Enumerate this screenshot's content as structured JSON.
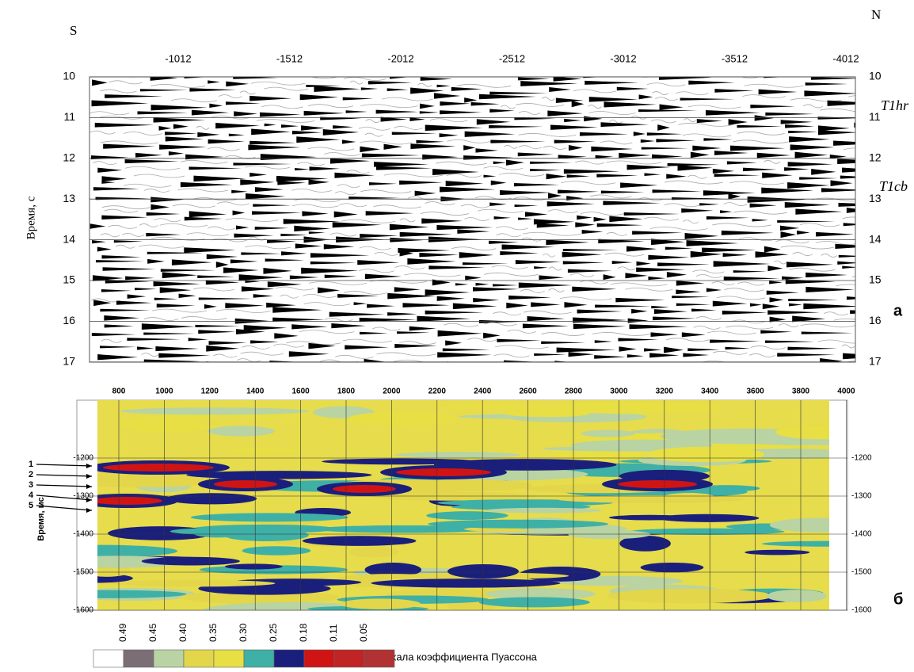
{
  "panels": [
    {
      "label": "а",
      "left_label": "S",
      "right_label": "N",
      "y_axis_label": "Время, с",
      "horizons": [
        "T1hr",
        "T1cb"
      ],
      "xticks": [
        -1012,
        -1512,
        -2012,
        -2512,
        -3012,
        -3512,
        -4012
      ],
      "yticks": [
        10,
        11,
        12,
        13,
        14,
        15,
        16,
        17
      ]
    },
    {
      "label": "б",
      "y_axis_label": "Время, мс",
      "markers": [
        "1",
        "2",
        "3",
        "4",
        "5"
      ],
      "xticks": [
        800,
        1000,
        1200,
        1400,
        1600,
        1800,
        2000,
        2200,
        2400,
        2600,
        2800,
        3000,
        3200,
        3400,
        3600,
        3800,
        4000
      ],
      "yticks": [
        -1200,
        -1300,
        -1400,
        -1500,
        -1600
      ]
    }
  ],
  "color_scale": {
    "title": "шкала коэффициента Пуассона",
    "ticks": [
      0.49,
      0.45,
      {
        "value": 0.4,
        "label": "0.40"
      },
      0.35,
      {
        "value": 0.3,
        "label": "0.30"
      },
      0.25,
      0.18,
      0.11,
      0.05
    ],
    "colors": [
      "#ffffff",
      "#7b6e74",
      "#b9d3a2",
      "#e3d64a",
      "#e8df45",
      "#3fb0a6",
      "#1b1f7c",
      "#d01414",
      "#c02424",
      "#b03232"
    ]
  }
}
